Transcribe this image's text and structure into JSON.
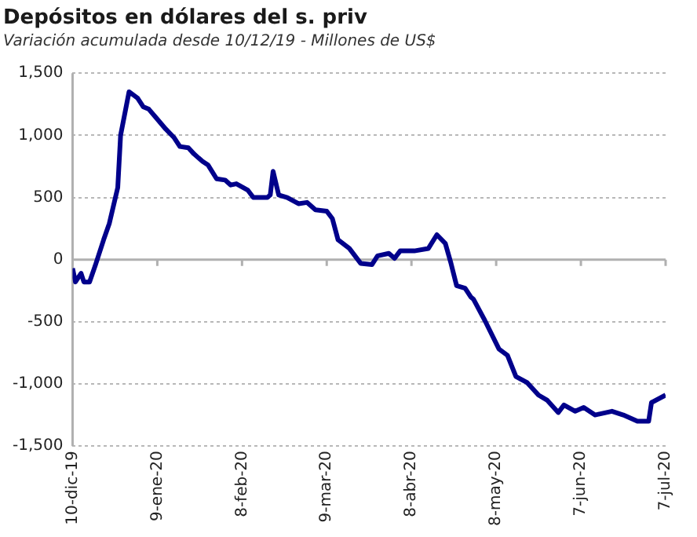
{
  "chart_data": {
    "type": "line",
    "title": "Depósitos en dólares del s. priv",
    "subtitle": "Variación acumulada desde 10/12/19 - Millones de US$",
    "x": [
      "2019-12-10",
      "2019-12-11",
      "2019-12-13",
      "2019-12-14",
      "2019-12-16",
      "2019-12-18",
      "2019-12-21",
      "2019-12-23",
      "2019-12-26",
      "2019-12-27",
      "2019-12-30",
      "2020-01-02",
      "2020-01-04",
      "2020-01-06",
      "2020-01-09",
      "2020-01-12",
      "2020-01-15",
      "2020-01-17",
      "2020-01-20",
      "2020-01-22",
      "2020-01-25",
      "2020-01-27",
      "2020-01-30",
      "2020-02-02",
      "2020-02-04",
      "2020-02-06",
      "2020-02-10",
      "2020-02-12",
      "2020-02-17",
      "2020-02-18",
      "2020-02-19",
      "2020-02-21",
      "2020-02-24",
      "2020-02-28",
      "2020-03-02",
      "2020-03-05",
      "2020-03-09",
      "2020-03-11",
      "2020-03-13",
      "2020-03-17",
      "2020-03-21",
      "2020-03-25",
      "2020-03-27",
      "2020-03-31",
      "2020-04-02",
      "2020-04-04",
      "2020-04-09",
      "2020-04-14",
      "2020-04-17",
      "2020-04-20",
      "2020-04-22",
      "2020-04-24",
      "2020-04-27",
      "2020-04-29",
      "2020-04-30",
      "2020-05-04",
      "2020-05-09",
      "2020-05-12",
      "2020-05-15",
      "2020-05-19",
      "2020-05-23",
      "2020-05-26",
      "2020-05-30",
      "2020-06-01",
      "2020-06-05",
      "2020-06-08",
      "2020-06-12",
      "2020-06-18",
      "2020-06-22",
      "2020-06-27",
      "2020-07-01",
      "2020-07-02",
      "2020-07-07"
    ],
    "series": [
      {
        "color": "#00008b",
        "values": [
          -70,
          -180,
          -110,
          -180,
          -180,
          -50,
          160,
          290,
          580,
          1000,
          1350,
          1300,
          1230,
          1210,
          1130,
          1050,
          980,
          910,
          900,
          850,
          790,
          760,
          650,
          640,
          600,
          610,
          560,
          500,
          500,
          520,
          710,
          520,
          500,
          450,
          460,
          400,
          390,
          330,
          160,
          90,
          -30,
          -40,
          30,
          50,
          10,
          70,
          70,
          90,
          200,
          130,
          -30,
          -210,
          -230,
          -300,
          -320,
          -490,
          -720,
          -770,
          -940,
          -990,
          -1090,
          -1130,
          -1230,
          -1170,
          -1220,
          -1190,
          -1250,
          -1220,
          -1250,
          -1300,
          -1300,
          -1150,
          -1090
        ]
      }
    ],
    "xlim": [
      "2019-12-10",
      "2020-07-07"
    ],
    "xticks": [
      {
        "value": "2019-12-10",
        "label": "10-dic-19"
      },
      {
        "value": "2020-01-09",
        "label": "9-ene-20"
      },
      {
        "value": "2020-02-08",
        "label": "8-feb-20"
      },
      {
        "value": "2020-03-09",
        "label": "9-mar-20"
      },
      {
        "value": "2020-04-08",
        "label": "8-abr-20"
      },
      {
        "value": "2020-05-08",
        "label": "8-may-20"
      },
      {
        "value": "2020-06-07",
        "label": "7-jun-20"
      },
      {
        "value": "2020-07-07",
        "label": "7-jul-20"
      }
    ],
    "ylim": [
      -1500,
      1500
    ],
    "yticks": [
      {
        "value": -1500,
        "label": "-1,500"
      },
      {
        "value": -1000,
        "label": "-1,000"
      },
      -500,
      0,
      500,
      {
        "value": 1000,
        "label": "1,000"
      },
      {
        "value": 1500,
        "label": "1,500"
      }
    ],
    "grid": "y",
    "legend": false,
    "marker": "none",
    "line_style": "solid"
  }
}
